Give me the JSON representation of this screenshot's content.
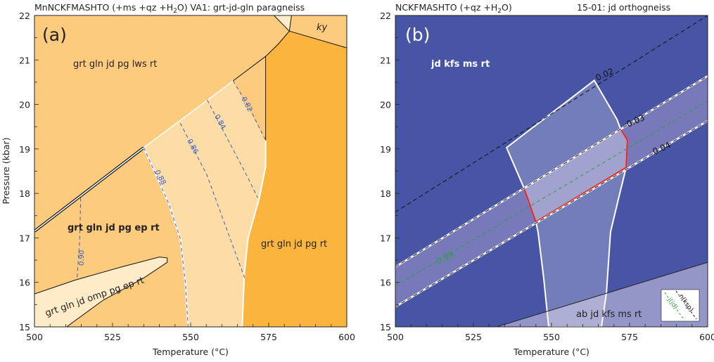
{
  "chart_data": [
    {
      "type": "area",
      "panel_label": "(a)",
      "title_left": "MnNCKFMASHTO (+ms +qz +H",
      "title_sub": "2",
      "title_right": "O)   VA1:  grt-jd-gln paragneiss",
      "xlabel": "Temperature (°C)",
      "ylabel": "Pressure (kbar)",
      "xlim": [
        500,
        600
      ],
      "ylim": [
        15,
        22
      ],
      "xticks": [
        500,
        525,
        550,
        575,
        600
      ],
      "yticks": [
        15,
        16,
        17,
        18,
        19,
        20,
        21,
        22
      ],
      "colors": {
        "background": "#FDCB7E",
        "light": "#FEDCA5",
        "lightest": "#FEEBC8",
        "dark": "#FBB53F",
        "isopleth": "#3A5BC7"
      },
      "fields": [
        {
          "label": "grt gln jd pg lws rt",
          "fill": "background"
        },
        {
          "label": "grt gln jd pg ep rt",
          "fill": "background",
          "bold": true
        },
        {
          "label": "grt gln jd pg rt",
          "fill": "dark",
          "polygon": [
            [
              581.6,
              21.65
            ],
            [
              600,
              21.27
            ],
            [
              600,
              15
            ],
            [
              566.5,
              15
            ],
            [
              567.2,
              16.2
            ],
            [
              568.4,
              17.0
            ],
            [
              572,
              17.9
            ],
            [
              574,
              18.6
            ],
            [
              574,
              19.19
            ],
            [
              574,
              21.08
            ]
          ]
        },
        {
          "label": "grt gln jd omp pg ep rt",
          "fill": "lightest",
          "polygon": [
            [
              500,
              15.74
            ],
            [
              513,
              16.05
            ],
            [
              528,
              16.35
            ],
            [
              540,
              16.57
            ],
            [
              542.5,
              16.55
            ],
            [
              542.5,
              16.45
            ],
            [
              535,
              16.1
            ],
            [
              522,
              15.6
            ],
            [
              510.3,
              15
            ],
            [
              500,
              15
            ],
            [
              500,
              15.74
            ]
          ]
        },
        {
          "label": "ky",
          "fill": "background",
          "italic": true
        }
      ],
      "light_field": {
        "fill": "light",
        "polygon": [
          [
            535,
            19.03
          ],
          [
            563.6,
            20.53
          ],
          [
            574,
            19.19
          ],
          [
            574,
            18.6
          ],
          [
            572,
            17.9
          ],
          [
            568.4,
            17.0
          ],
          [
            567.2,
            16.2
          ],
          [
            566.5,
            15
          ],
          [
            549.2,
            15
          ],
          [
            548.3,
            16.0
          ],
          [
            546.7,
            16.98
          ],
          [
            543,
            17.77
          ],
          [
            535,
            19.03
          ]
        ]
      },
      "isopleths": [
        {
          "label": "0.82",
          "points": [
            [
              563.6,
              20.53
            ],
            [
              569,
              19.9
            ],
            [
              574,
              19.19
            ]
          ]
        },
        {
          "label": "0.84",
          "points": [
            [
              555.3,
              20.1
            ],
            [
              562,
              19.2
            ],
            [
              568,
              18.4
            ],
            [
              571.5,
              17.9
            ]
          ]
        },
        {
          "label": "0.86",
          "points": [
            [
              546.7,
              19.58
            ],
            [
              555.3,
              18.4
            ],
            [
              561,
              17.3
            ],
            [
              567.3,
              16.1
            ]
          ]
        },
        {
          "label": "0.88",
          "points": [
            [
              535,
              19.03
            ],
            [
              543,
              17.77
            ],
            [
              546.7,
              16.98
            ],
            [
              548.3,
              16.0
            ],
            [
              549.2,
              15
            ]
          ]
        },
        {
          "label": "0.90",
          "points": [
            [
              514.8,
              17.9
            ],
            [
              514.5,
              17.0
            ],
            [
              513.6,
              16.05
            ]
          ]
        }
      ]
    },
    {
      "type": "area",
      "panel_label": "(b)",
      "title_left": "NCKFMASHTO (+qz +H",
      "title_sub": "2",
      "title_mid": "O)",
      "title_right": "15-01:  jd orthogneiss",
      "xlabel": "Temperature (°C)",
      "xlim": [
        500,
        600
      ],
      "ylim": [
        15,
        22
      ],
      "xticks": [
        500,
        525,
        550,
        575,
        600
      ],
      "yticks": [
        15,
        16,
        17,
        18,
        19,
        20,
        21,
        22
      ],
      "colors": {
        "background": "#4855A4",
        "lower_field": "#9496C8",
        "band": "#7779B9",
        "assemblage_outline": "#FFFFFF",
        "best_fit_outline": "#E8231E",
        "jd_isopleth": "#2EA043"
      },
      "fields": [
        {
          "label": "jd kfs ms rt",
          "fill": "background",
          "bold": true
        },
        {
          "label": "ab jd kfs ms rt",
          "fill": "lower_field",
          "polygon": [
            [
              532.4,
              15
            ],
            [
              600,
              16.45
            ],
            [
              600,
              15
            ]
          ]
        }
      ],
      "isopleths_ksp": [
        {
          "label": "0.02",
          "line": [
            [
              500,
              17.58
            ],
            [
              600,
              22.0
            ]
          ]
        },
        {
          "label": "0.03",
          "line": [
            [
              500,
              16.35
            ],
            [
              600,
              20.64
            ]
          ]
        },
        {
          "label": "0.04",
          "line": [
            [
              500,
              15.45
            ],
            [
              600,
              19.63
            ]
          ]
        }
      ],
      "isopleth_jd": {
        "label": "0.99",
        "line": [
          [
            500,
            15.92
          ],
          [
            600,
            20.08
          ]
        ]
      },
      "assemblage_polygon": [
        [
          535.6,
          19.03
        ],
        [
          563.7,
          20.54
        ],
        [
          571,
          19.66
        ],
        [
          572.1,
          19.45
        ],
        [
          574.3,
          19.2
        ],
        [
          573.9,
          18.58
        ],
        [
          571.5,
          17.9
        ],
        [
          568.9,
          17.13
        ],
        [
          567.6,
          15.76
        ],
        [
          566,
          15
        ],
        [
          549.1,
          15
        ],
        [
          547.5,
          16.1
        ],
        [
          545.7,
          17.13
        ],
        [
          545,
          17.36
        ],
        [
          541.2,
          18.12
        ],
        [
          535.6,
          19.03
        ]
      ],
      "best_fit_polygon": [
        [
          541.2,
          18.12
        ],
        [
          572.1,
          19.45
        ],
        [
          574.3,
          19.2
        ],
        [
          573.9,
          18.58
        ],
        [
          545,
          17.36
        ]
      ],
      "legend": {
        "position": "bottom-right",
        "items": [
          {
            "label": "j(jd)",
            "color": "#2EA043"
          },
          {
            "label": "n(ksp)",
            "color": "#000000"
          }
        ]
      }
    }
  ]
}
